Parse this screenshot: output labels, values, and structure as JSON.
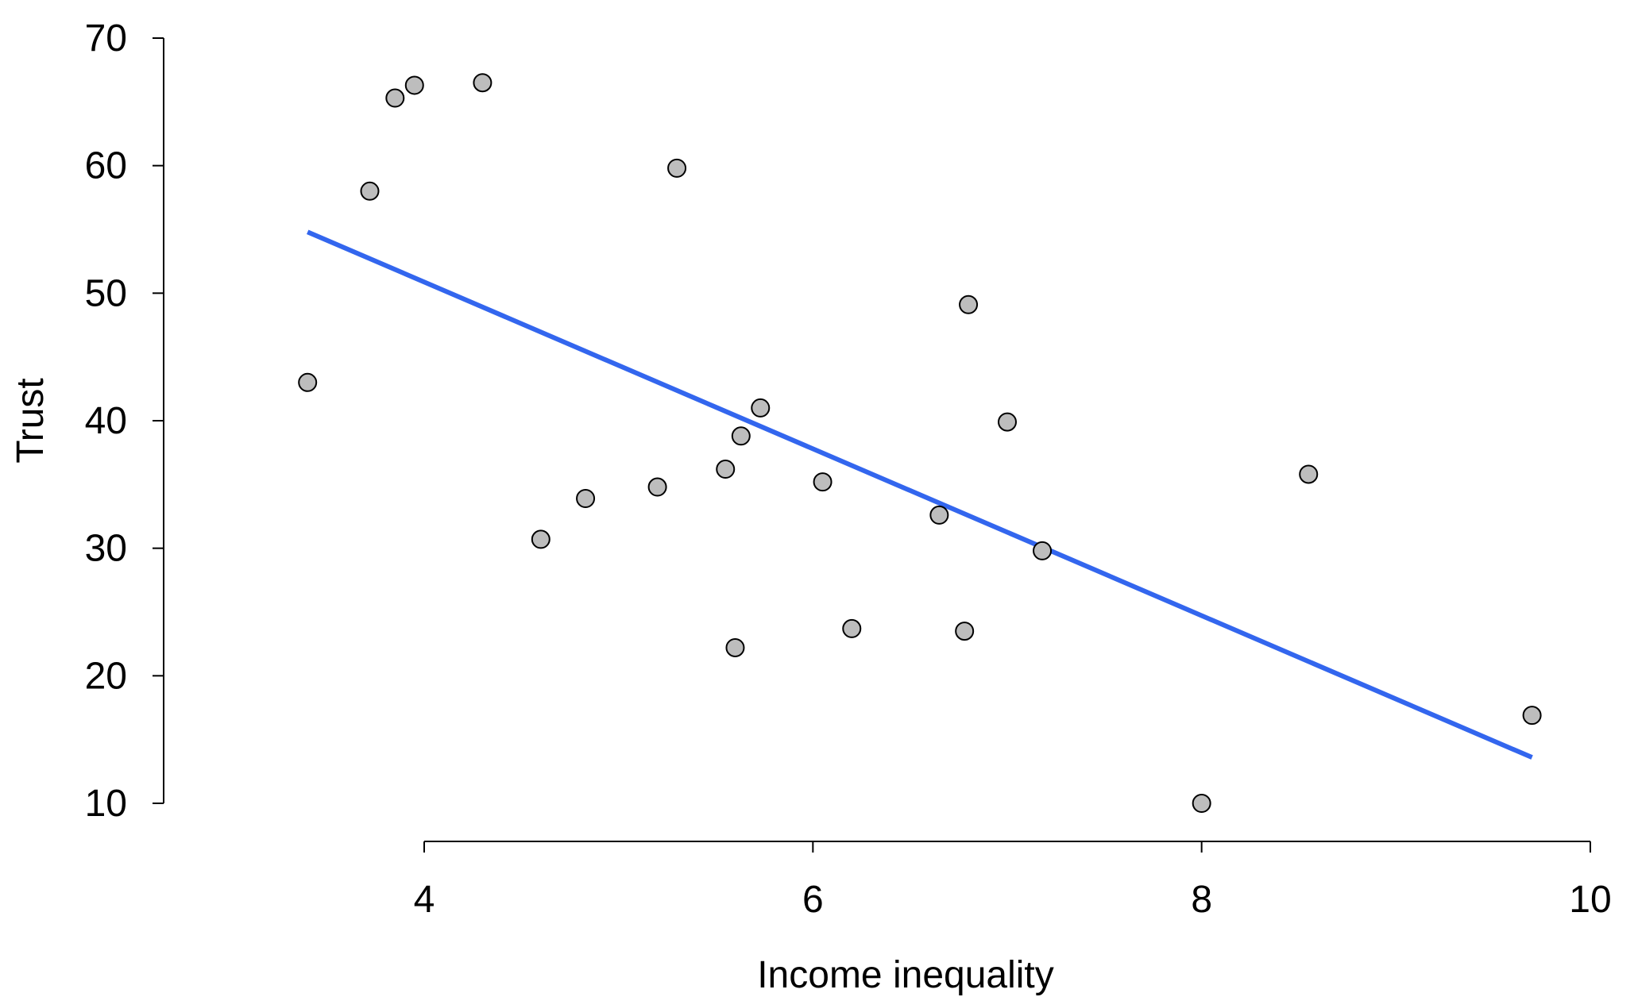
{
  "chart_data": {
    "type": "scatter",
    "title": "",
    "xlabel": "Income inequality",
    "ylabel": "Trust",
    "xlim": [
      4,
      10
    ],
    "ylim": [
      10,
      70
    ],
    "xticks": [
      4,
      6,
      8,
      10
    ],
    "yticks": [
      10,
      20,
      30,
      40,
      50,
      60,
      70
    ],
    "grid": false,
    "legend": "none",
    "colors": {
      "point_fill": "#bdbdbd",
      "point_stroke": "#000000",
      "fit_line": "#3366ee"
    },
    "points": [
      {
        "x": 3.4,
        "y": 43.0
      },
      {
        "x": 3.72,
        "y": 58.0
      },
      {
        "x": 3.85,
        "y": 65.3
      },
      {
        "x": 3.95,
        "y": 66.3
      },
      {
        "x": 4.3,
        "y": 66.5
      },
      {
        "x": 4.6,
        "y": 30.7
      },
      {
        "x": 4.83,
        "y": 33.9
      },
      {
        "x": 5.2,
        "y": 34.8
      },
      {
        "x": 5.3,
        "y": 59.8
      },
      {
        "x": 5.55,
        "y": 36.2
      },
      {
        "x": 5.6,
        "y": 22.2
      },
      {
        "x": 5.63,
        "y": 38.8
      },
      {
        "x": 5.73,
        "y": 41.0
      },
      {
        "x": 6.05,
        "y": 35.2
      },
      {
        "x": 6.2,
        "y": 23.7
      },
      {
        "x": 6.65,
        "y": 32.6
      },
      {
        "x": 6.78,
        "y": 23.5
      },
      {
        "x": 6.8,
        "y": 49.1
      },
      {
        "x": 7.0,
        "y": 39.9
      },
      {
        "x": 7.18,
        "y": 29.8
      },
      {
        "x": 8.0,
        "y": 10.0
      },
      {
        "x": 8.55,
        "y": 35.8
      },
      {
        "x": 9.7,
        "y": 16.9
      }
    ],
    "fit_line": {
      "x": [
        3.4,
        9.7
      ],
      "y": [
        54.8,
        13.6
      ]
    }
  }
}
